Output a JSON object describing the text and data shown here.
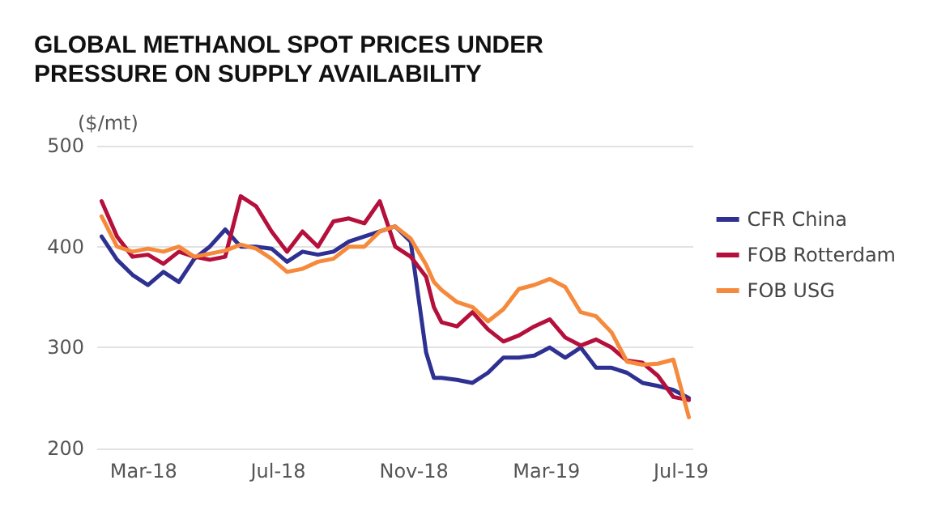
{
  "chart_data": {
    "type": "line",
    "title": "GLOBAL METHANOL SPOT PRICES UNDER PRESSURE ON SUPPLY AVAILABILITY",
    "ylabel": "($/mt)",
    "x": [
      "2018-01-22",
      "2018-02-05",
      "2018-02-19",
      "2018-03-05",
      "2018-03-19",
      "2018-04-02",
      "2018-04-16",
      "2018-04-30",
      "2018-05-14",
      "2018-05-28",
      "2018-06-11",
      "2018-06-25",
      "2018-07-09",
      "2018-07-23",
      "2018-08-06",
      "2018-08-20",
      "2018-09-03",
      "2018-09-17",
      "2018-10-01",
      "2018-10-15",
      "2018-10-29",
      "2018-11-05",
      "2018-11-12",
      "2018-11-19",
      "2018-11-26",
      "2018-12-10",
      "2018-12-24",
      "2019-01-07",
      "2019-01-21",
      "2019-02-04",
      "2019-02-18",
      "2019-03-04",
      "2019-03-18",
      "2019-04-01",
      "2019-04-15",
      "2019-04-29",
      "2019-05-13",
      "2019-05-27",
      "2019-06-10",
      "2019-06-24",
      "2019-07-08"
    ],
    "series": [
      {
        "name": "CFR China",
        "color": "#2e3192",
        "values": [
          410,
          387,
          372,
          362,
          375,
          365,
          388,
          400,
          417,
          400,
          400,
          398,
          385,
          395,
          392,
          395,
          405,
          410,
          415,
          420,
          405,
          350,
          295,
          270,
          270,
          268,
          265,
          275,
          290,
          290,
          292,
          300,
          290,
          300,
          280,
          280,
          275,
          265,
          262,
          258,
          250
        ]
      },
      {
        "name": "FOB Rotterdam",
        "color": "#b5103c",
        "values": [
          445,
          410,
          390,
          392,
          383,
          395,
          390,
          387,
          390,
          450,
          440,
          415,
          395,
          415,
          400,
          425,
          428,
          423,
          445,
          400,
          390,
          380,
          370,
          340,
          325,
          321,
          335,
          318,
          306,
          312,
          321,
          328,
          310,
          302,
          308,
          300,
          287,
          285,
          272,
          251,
          248
        ]
      },
      {
        "name": "FOB USG",
        "color": "#f58a3c",
        "values": [
          430,
          400,
          395,
          398,
          395,
          400,
          390,
          393,
          396,
          402,
          398,
          388,
          375,
          378,
          385,
          388,
          400,
          400,
          415,
          420,
          408,
          395,
          382,
          365,
          357,
          345,
          340,
          326,
          338,
          358,
          362,
          368,
          360,
          335,
          331,
          315,
          286,
          283,
          284,
          288,
          231
        ]
      }
    ],
    "xlim": [
      "2018-01-18",
      "2019-07-12"
    ],
    "xticks": [
      {
        "value": "2018-03-01",
        "label": "Mar-18"
      },
      {
        "value": "2018-07-01",
        "label": "Jul-18"
      },
      {
        "value": "2018-11-01",
        "label": "Nov-18"
      },
      {
        "value": "2019-03-01",
        "label": "Mar-19"
      },
      {
        "value": "2019-07-01",
        "label": "Jul-19"
      }
    ],
    "ylim": [
      200,
      500
    ],
    "yticks": [
      200,
      300,
      400,
      500
    ],
    "grid": "y",
    "legend": "right",
    "marker": "none",
    "line_style": "solid"
  }
}
